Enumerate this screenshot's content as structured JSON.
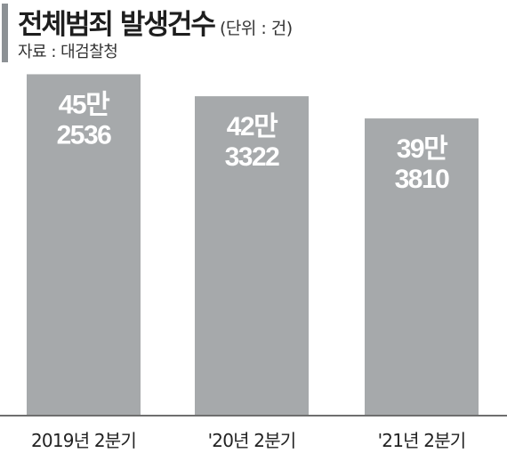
{
  "header": {
    "title": "전체범죄 발생건수",
    "unit": "(단위 : 건)",
    "source": "자료 : 대검찰청"
  },
  "colors": {
    "bar": "#a6a9ab",
    "accent_bar": "#8c9195",
    "axis": "#6e6e6e",
    "label": "#ffffff"
  },
  "chart_data": {
    "type": "bar",
    "title": "전체범죄 발생건수",
    "unit": "(단위 : 건)",
    "categories": [
      "2019년 2분기",
      "'20년 2분기",
      "'21년 2분기"
    ],
    "values": [
      452536,
      423322,
      393810
    ],
    "value_labels": [
      [
        "45만",
        "2536"
      ],
      [
        "42만",
        "3322"
      ],
      [
        "39만",
        "3810"
      ]
    ],
    "xlabel": "",
    "ylabel": "",
    "grid": false,
    "legend": "none"
  }
}
